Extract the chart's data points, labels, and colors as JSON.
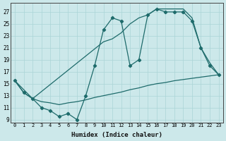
{
  "xlabel": "Humidex (Indice chaleur)",
  "bg_color": "#cce8ea",
  "line_color": "#1e6b6b",
  "grid_color": "#aad4d6",
  "xlim": [
    -0.5,
    23.5
  ],
  "ylim": [
    8.5,
    28.5
  ],
  "yticks": [
    9,
    11,
    13,
    15,
    17,
    19,
    21,
    23,
    25,
    27
  ],
  "xticks": [
    0,
    1,
    2,
    3,
    4,
    5,
    6,
    7,
    8,
    9,
    10,
    11,
    12,
    13,
    14,
    15,
    16,
    17,
    18,
    19,
    20,
    21,
    22,
    23
  ],
  "line_zigzag_x": [
    0,
    1,
    2,
    3,
    4,
    5,
    6,
    7,
    8,
    9,
    10,
    11,
    12,
    13,
    14,
    15,
    16,
    17,
    18,
    19,
    20,
    21,
    22,
    23
  ],
  "line_zigzag_y": [
    15.5,
    13.5,
    12.5,
    11,
    10.5,
    9.5,
    10,
    9,
    13,
    18,
    24,
    26,
    25.5,
    18,
    19,
    26.5,
    27.5,
    27,
    27,
    27,
    25.5,
    21,
    18,
    16.5
  ],
  "line_upper_x": [
    0,
    2,
    10,
    11,
    12,
    13,
    14,
    15,
    16,
    17,
    18,
    19,
    20,
    21,
    22,
    23
  ],
  "line_upper_y": [
    15.5,
    12.5,
    22,
    22.5,
    23.5,
    25,
    26,
    26.5,
    27.5,
    27.5,
    27.5,
    27.5,
    26,
    21,
    18.5,
    16.5
  ],
  "line_lower_x": [
    0,
    1,
    2,
    3,
    4,
    5,
    6,
    7,
    8,
    9,
    10,
    11,
    12,
    13,
    14,
    15,
    16,
    17,
    18,
    19,
    20,
    21,
    22,
    23
  ],
  "line_lower_y": [
    15.5,
    13.5,
    12.5,
    12.0,
    11.8,
    11.5,
    11.8,
    12.0,
    12.3,
    12.7,
    13.0,
    13.3,
    13.6,
    14.0,
    14.3,
    14.7,
    15.0,
    15.2,
    15.5,
    15.7,
    15.9,
    16.1,
    16.3,
    16.5
  ]
}
